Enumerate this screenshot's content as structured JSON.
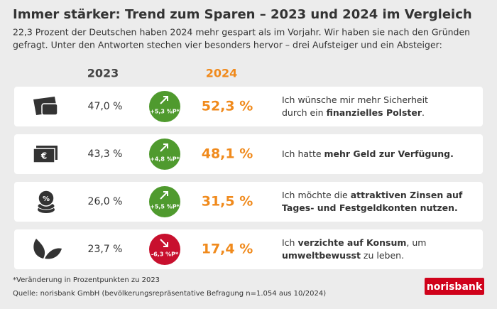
{
  "header": {
    "title": "Immer stärker: Trend zum Sparen – 2023 und 2024 im Vergleich",
    "subtitle_lines": [
      "22,3 Prozent der Deutschen haben 2024 mehr gespart als im Vorjahr. Wir haben sie nach den Gründen",
      "gefragt. Unter den Antworten stechen vier besonders hervor – drei Aufsteiger und ein Absteiger:"
    ]
  },
  "columns": {
    "year_a": "2023",
    "year_b": "2024"
  },
  "rows": [
    {
      "value_a": "47,0 %",
      "change": "+5,3 %P*",
      "direction": "up",
      "value_b": "52,3 %",
      "reason_lines": [
        [
          {
            "text": "Ich wünsche mir mehr Sicherheit",
            "bold": false
          }
        ],
        [
          {
            "text": "durch ein ",
            "bold": false
          },
          {
            "text": "finanzielles Polster",
            "bold": true
          },
          {
            "text": ".",
            "bold": false
          }
        ]
      ]
    },
    {
      "value_a": "43,3 %",
      "change": "+4,8 %P*",
      "direction": "up",
      "value_b": "48,1 %",
      "reason_lines": [
        [
          {
            "text": "Ich hatte ",
            "bold": false
          },
          {
            "text": "mehr Geld zur Verfügung.",
            "bold": true
          }
        ]
      ]
    },
    {
      "value_a": "26,0 %",
      "change": "+5,5 %P*",
      "direction": "up",
      "value_b": "31,5 %",
      "reason_lines": [
        [
          {
            "text": "Ich möchte die ",
            "bold": false
          },
          {
            "text": "attraktiven Zinsen auf",
            "bold": true
          }
        ],
        [
          {
            "text": "Tages- und Festgeldkonten nutzen.",
            "bold": true
          }
        ]
      ]
    },
    {
      "value_a": "23,7 %",
      "change": "-6,3 %P*",
      "direction": "down",
      "value_b": "17,4 %",
      "reason_lines": [
        [
          {
            "text": "Ich ",
            "bold": false
          },
          {
            "text": "verzichte auf Konsum",
            "bold": true
          },
          {
            "text": ", um",
            "bold": false
          }
        ],
        [
          {
            "text": "umweltbewusst",
            "bold": true
          },
          {
            "text": " zu leben.",
            "bold": false
          }
        ]
      ]
    }
  ],
  "footer": {
    "footnote": "*Veränderung in Prozentpunkten zu 2023",
    "source": "Quelle: norisbank GmbH (bevölkerungsrepräsentative Befragung n=1.054 aus 10/2024)",
    "logo": "norisbank"
  },
  "colors": {
    "up": "#4f9a2e",
    "down": "#c8102e",
    "highlight": "#f08a1c",
    "logo": "#d0021b"
  }
}
